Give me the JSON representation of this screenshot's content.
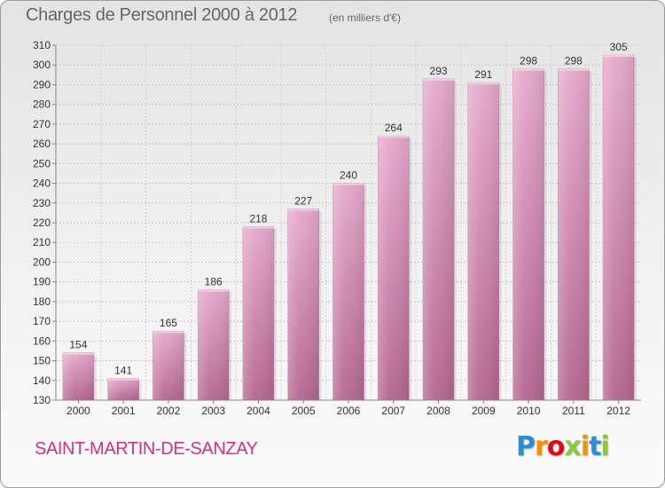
{
  "chart_data": {
    "type": "bar",
    "title": "Charges de Personnel 2000 à 2012",
    "subtitle": "(en milliers d'€)",
    "categories": [
      "2000",
      "2001",
      "2002",
      "2003",
      "2004",
      "2005",
      "2006",
      "2007",
      "2008",
      "2009",
      "2010",
      "2011",
      "2012"
    ],
    "values": [
      154,
      141,
      165,
      186,
      218,
      227,
      240,
      264,
      293,
      291,
      298,
      298,
      305
    ],
    "ylim": [
      130,
      310
    ],
    "yticks": [
      130,
      140,
      150,
      160,
      170,
      180,
      190,
      200,
      210,
      220,
      230,
      240,
      250,
      260,
      270,
      280,
      290,
      300,
      310
    ],
    "grid": true,
    "bar_color": "#d98fb8"
  },
  "footer": {
    "location": "SAINT-MARTIN-DE-SANZAY",
    "location_color": "#d0308a",
    "brand": "Proxiti",
    "brand_colors": [
      "#2b8fd6",
      "#f39200",
      "#e30613",
      "#8dc63f",
      "#f39200",
      "#2b8fd6",
      "#8dc63f"
    ]
  }
}
